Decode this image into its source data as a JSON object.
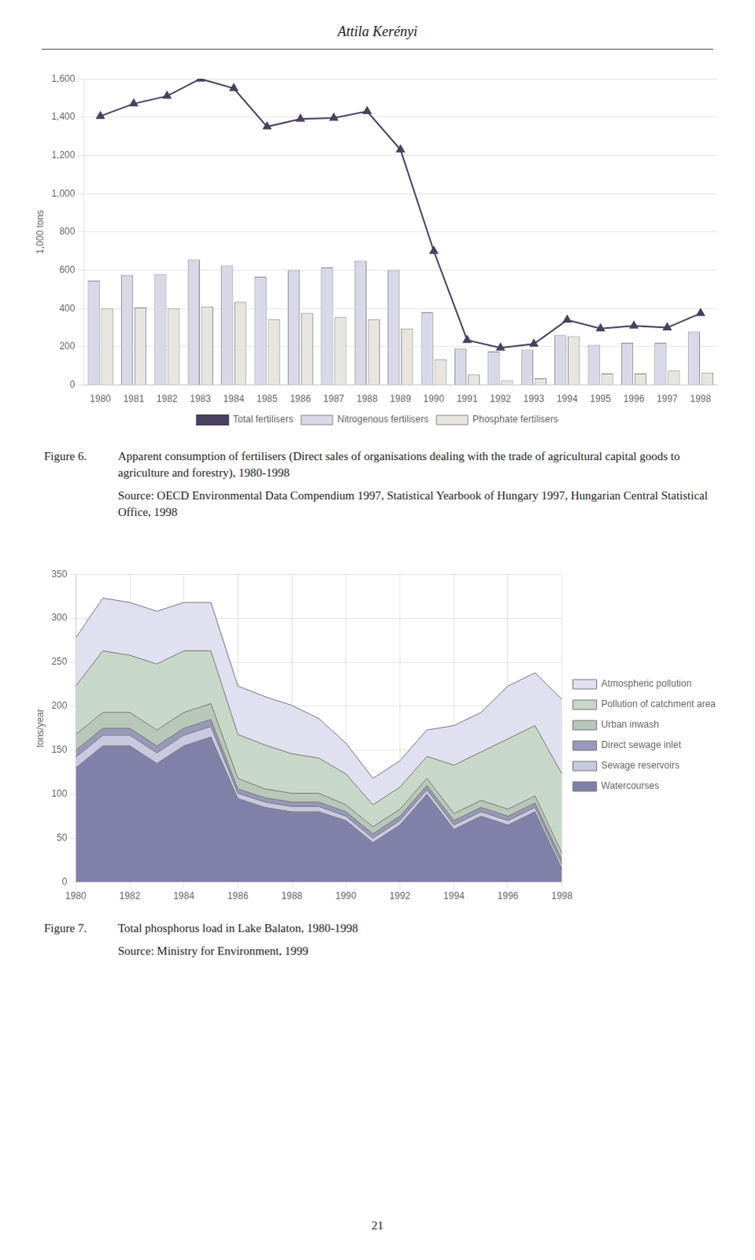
{
  "title": "Attila Kerényi",
  "annotations": [
    "21"
  ],
  "chart_data": [
    {
      "type": "bar",
      "annotations": [
        "Figure 6.",
        "Apparent consumption of fertilisers (Direct sales of organisations dealing with the trade of agricultural capital goods to agriculture and forestry), 1980-1998",
        "Source: OECD Environmental Data Compendium 1997, Statistical Yearbook of Hungary 1997, Hungarian Central Statistical Office, 1998"
      ],
      "y_label": "1,000 tons",
      "categories": [
        1980,
        1981,
        1982,
        1983,
        1984,
        1985,
        1986,
        1987,
        1988,
        1989,
        1990,
        1991,
        1992,
        1993,
        1994,
        1995,
        1996,
        1997,
        1998
      ],
      "series": [
        {
          "name": "Nitrogenous fertilisers",
          "type": "bar",
          "color": "#d8d8e8",
          "values": [
            545,
            575,
            580,
            655,
            625,
            565,
            600,
            615,
            650,
            600,
            380,
            190,
            175,
            185,
            260,
            210,
            220,
            220,
            280
          ]
        },
        {
          "name": "Phosphate fertilisers",
          "type": "bar",
          "color": "#e8e4e0",
          "values": [
            400,
            405,
            400,
            410,
            435,
            345,
            375,
            355,
            345,
            295,
            135,
            55,
            25,
            35,
            255,
            60,
            60,
            75,
            65
          ]
        },
        {
          "name": "Total fertilisers",
          "type": "line",
          "color": "#4a4060",
          "marker": "triangle",
          "values": [
            1405,
            1470,
            1510,
            1600,
            1550,
            1350,
            1390,
            1395,
            1430,
            1230,
            700,
            235,
            195,
            215,
            340,
            295,
            310,
            300,
            375
          ]
        }
      ],
      "ylim": [
        0,
        1600
      ],
      "yticks": [
        0,
        200,
        400,
        600,
        800,
        {
          "value": 1000,
          "label": "1,000"
        },
        {
          "value": 1200,
          "label": "1,200"
        },
        {
          "value": 1400,
          "label": "1,400"
        },
        {
          "value": 1600,
          "label": "1,600"
        }
      ],
      "grid": "y",
      "legend": "bottom"
    },
    {
      "type": "area",
      "annotations": [
        "Figure 7.",
        "Total phosphorus load in Lake Balaton, 1980-1998",
        "Source: Ministry for Environment, 1999"
      ],
      "y_label": "tons/year",
      "x": [
        1980,
        1981,
        1982,
        1983,
        1984,
        1985,
        1986,
        1987,
        1988,
        1989,
        1990,
        1991,
        1992,
        1993,
        1994,
        1995,
        1996,
        1997,
        1998
      ],
      "series": [
        {
          "name": "Watercourses",
          "color": "#8080a8",
          "values": [
            130,
            155,
            155,
            135,
            155,
            165,
            95,
            85,
            80,
            80,
            70,
            45,
            65,
            100,
            60,
            75,
            65,
            80,
            15
          ]
        },
        {
          "name": "Sewage reservoirs",
          "color": "#c8c8e0",
          "values": [
            12,
            12,
            12,
            12,
            12,
            12,
            6,
            6,
            6,
            6,
            5,
            5,
            5,
            5,
            5,
            5,
            5,
            5,
            5
          ]
        },
        {
          "name": "Direct sewage inlet",
          "color": "#9898b8",
          "values": [
            8,
            8,
            8,
            8,
            8,
            8,
            5,
            5,
            5,
            5,
            5,
            5,
            5,
            5,
            5,
            5,
            5,
            5,
            5
          ]
        },
        {
          "name": "Urban inwash",
          "color": "#b8c8b8",
          "values": [
            18,
            18,
            18,
            18,
            18,
            18,
            12,
            10,
            10,
            10,
            8,
            8,
            8,
            8,
            8,
            8,
            8,
            8,
            8
          ]
        },
        {
          "name": "Pollution of catchment area",
          "color": "#c8d8c8",
          "values": [
            55,
            70,
            65,
            75,
            70,
            60,
            50,
            50,
            45,
            40,
            35,
            25,
            25,
            25,
            55,
            55,
            80,
            80,
            90
          ]
        },
        {
          "name": "Atmospheric pollution",
          "color": "#e0e0f0",
          "values": [
            55,
            60,
            60,
            60,
            55,
            55,
            55,
            55,
            55,
            45,
            35,
            30,
            30,
            30,
            45,
            45,
            60,
            60,
            85
          ]
        }
      ],
      "xlim": [
        1980,
        1998
      ],
      "xticks": [
        1980,
        1982,
        1984,
        1986,
        1988,
        1990,
        1992,
        1994,
        1996,
        1998
      ],
      "ylim": [
        0,
        350
      ],
      "yticks": [
        0,
        50,
        100,
        150,
        200,
        250,
        300,
        350
      ],
      "stacked": true,
      "grid": true,
      "legend": "right"
    }
  ]
}
